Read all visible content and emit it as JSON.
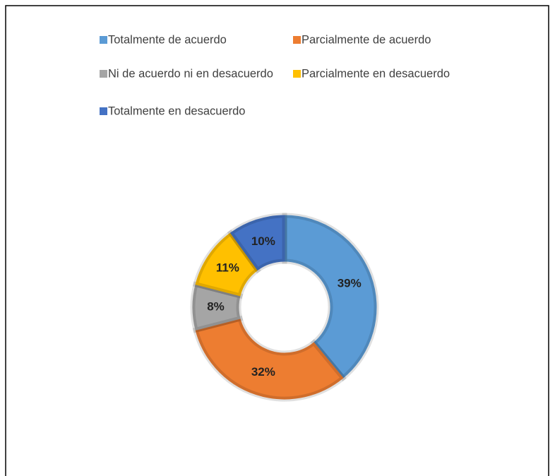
{
  "chart_data": {
    "type": "donut",
    "categories": [
      "Totalmente de acuerdo",
      "Parcialmente de acuerdo",
      "Ni de acuerdo ni en desacuerdo",
      "Parcialmente en desacuerdo",
      "Totalmente en desacuerdo"
    ],
    "values": [
      39,
      32,
      8,
      11,
      10
    ],
    "value_labels": [
      "39%",
      "32%",
      "8%",
      "11%",
      "10%"
    ],
    "colors": [
      "#5b9bd5",
      "#ed7d31",
      "#a5a5a5",
      "#ffc000",
      "#4472c4"
    ],
    "legend": "top"
  }
}
